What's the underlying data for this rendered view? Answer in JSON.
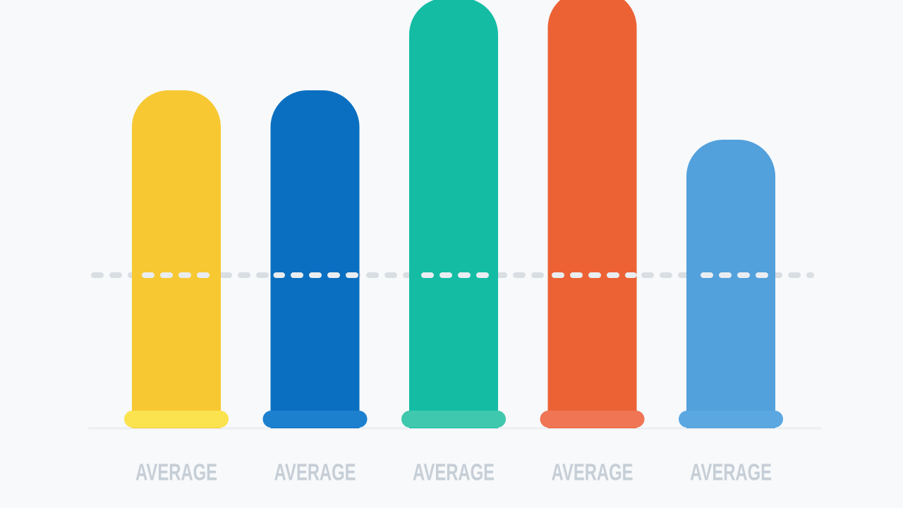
{
  "chart_data": {
    "type": "bar",
    "categories": [
      "AVERAGE",
      "AVERAGE",
      "AVERAGE",
      "AVERAGE",
      "AVERAGE"
    ],
    "values": [
      479,
      479,
      610,
      620,
      409
    ],
    "colors": [
      "#f7c832",
      "#0a6fc0",
      "#14bca4",
      "#ec6234",
      "#52a0dc"
    ],
    "base_colors": [
      "#fae34e",
      "#1c80cf",
      "#3fc8ad",
      "#ef7555",
      "#5ba7e2"
    ],
    "ylim": [
      0,
      600
    ],
    "average": 217,
    "grid": false
  }
}
